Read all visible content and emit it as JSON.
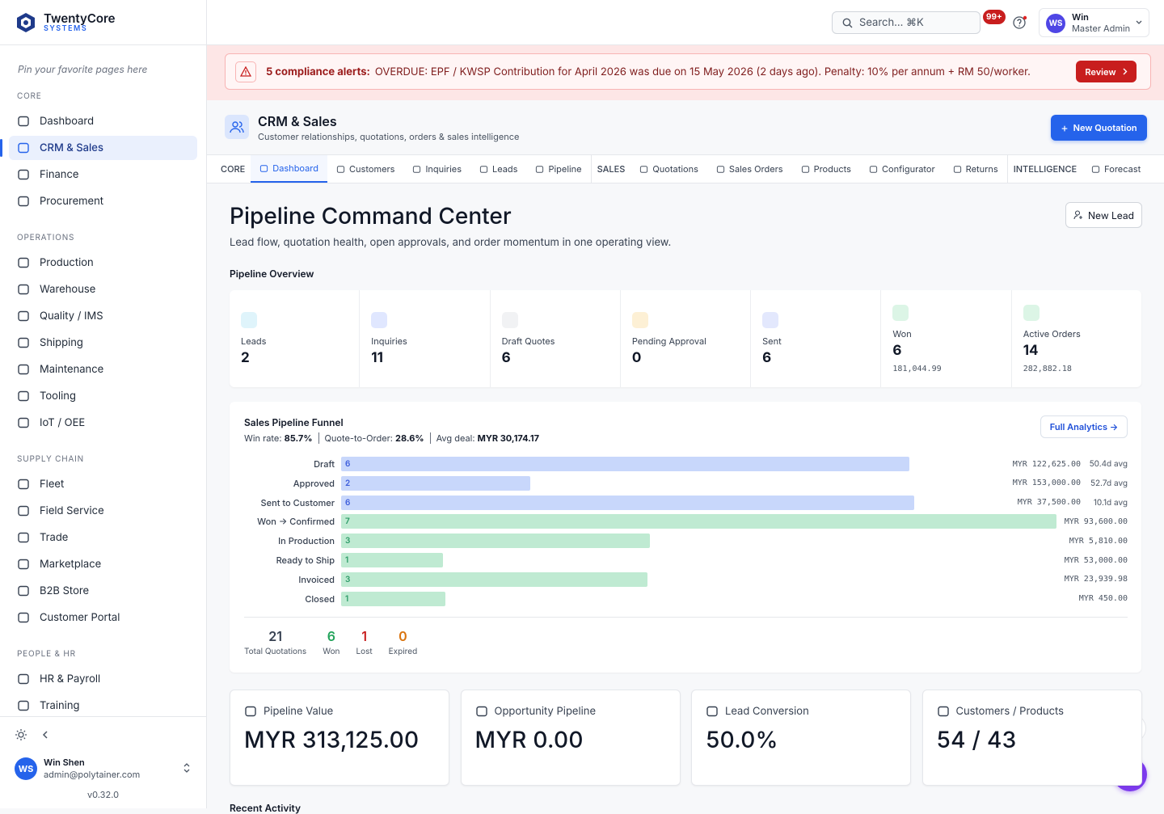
{
  "brand": {
    "name": "TwentyCore",
    "tagline": "SYSTEMS"
  },
  "sidebar": {
    "pin_hint": "Pin your favorite pages here",
    "active": "CRM & Sales",
    "sections": [
      {
        "title": "CORE",
        "items": [
          "Dashboard",
          "CRM & Sales",
          "Finance",
          "Procurement"
        ]
      },
      {
        "title": "OPERATIONS",
        "items": [
          "Production",
          "Warehouse",
          "Quality / IMS",
          "Shipping",
          "Maintenance",
          "Tooling",
          "IoT / OEE"
        ]
      },
      {
        "title": "SUPPLY CHAIN",
        "items": [
          "Fleet",
          "Field Service",
          "Trade",
          "Marketplace",
          "B2B Store",
          "Customer Portal"
        ]
      },
      {
        "title": "PEOPLE & HR",
        "items": [
          "HR & Payroll",
          "Training"
        ]
      }
    ],
    "user": {
      "initials": "WS",
      "name": "Win Shen",
      "email": "admin@polytainer.com"
    },
    "version": "v0.32.0"
  },
  "topbar": {
    "search": "Search... ⌘K",
    "notifications": "99+",
    "user": {
      "initials": "WS",
      "name": "Win",
      "role": "Master Admin"
    }
  },
  "alert": {
    "label": "5 compliance alerts:",
    "message": "OVERDUE: EPF / KWSP Contribution for April 2026 was due on 15 May 2026 (2 days ago). Penalty: 10% per annum + RM 50/worker.",
    "action": "Review"
  },
  "module": {
    "title": "CRM & Sales",
    "subtitle": "Customer relationships, quotations, orders & sales intelligence",
    "action": "New Quotation"
  },
  "tabs": {
    "active": "Dashboard",
    "groups": [
      {
        "title": "CORE",
        "items": [
          "Dashboard",
          "Customers",
          "Inquiries",
          "Leads",
          "Pipeline"
        ]
      },
      {
        "title": "SALES",
        "items": [
          "Quotations",
          "Sales Orders",
          "Products",
          "Configurator",
          "Returns"
        ]
      },
      {
        "title": "INTELLIGENCE",
        "items": [
          "Forecast"
        ]
      }
    ]
  },
  "page": {
    "title": "Pipeline Command Center",
    "subtitle": "Lead flow, quotation health, open approvals, and order momentum in one operating view.",
    "action": "New Lead"
  },
  "overview": {
    "title": "Pipeline Overview",
    "cards": [
      {
        "label": "Leads",
        "value": "2"
      },
      {
        "label": "Inquiries",
        "value": "11"
      },
      {
        "label": "Draft Quotes",
        "value": "6"
      },
      {
        "label": "Pending Approval",
        "value": "0"
      },
      {
        "label": "Sent",
        "value": "6"
      },
      {
        "label": "Won",
        "value": "6",
        "sub": "181,044.99"
      },
      {
        "label": "Active Orders",
        "value": "14",
        "sub": "282,882.18"
      }
    ]
  },
  "funnel": {
    "title": "Sales Pipeline Funnel",
    "stats": [
      {
        "label": "Win rate:",
        "value": "85.7%"
      },
      {
        "label": "Quote-to-Order:",
        "value": "28.6%"
      },
      {
        "label": "Avg deal:",
        "value": "MYR 30,174.17"
      }
    ],
    "action": "Full Analytics →",
    "stages": [
      {
        "name": "Draft",
        "count": 6,
        "amount": "MYR 122,625.00",
        "avg": "50.4d avg",
        "color": "#c8d7fb"
      },
      {
        "name": "Approved",
        "count": 2,
        "amount": "MYR 153,000.00",
        "avg": "52.7d avg",
        "color": "#c8d7fb"
      },
      {
        "name": "Sent to Customer",
        "count": 6,
        "amount": "MYR 37,500.00",
        "avg": "10.1d avg",
        "color": "#c8d7fb"
      },
      {
        "name": "Won → Confirmed",
        "count": 7,
        "amount": "MYR 93,600.00",
        "color": "#bfead2"
      },
      {
        "name": "In Production",
        "count": 3,
        "amount": "MYR 5,810.00",
        "color": "#bfead2"
      },
      {
        "name": "Ready to Ship",
        "count": 1,
        "amount": "MYR 53,000.00",
        "color": "#bfead2"
      },
      {
        "name": "Invoiced",
        "count": 3,
        "amount": "MYR 23,939.98",
        "color": "#bfead2"
      },
      {
        "name": "Closed",
        "count": 1,
        "amount": "MYR 450.00",
        "color": "#bfead2"
      }
    ],
    "totals": [
      {
        "value": "21",
        "label": "Total Quotations"
      },
      {
        "value": "6",
        "label": "Won"
      },
      {
        "value": "1",
        "label": "Lost"
      },
      {
        "value": "0",
        "label": "Expired"
      }
    ]
  },
  "kpis": [
    {
      "label": "Pipeline Value",
      "value": "MYR 313,125.00"
    },
    {
      "label": "Opportunity Pipeline",
      "value": "MYR 0.00"
    },
    {
      "label": "Lead Conversion",
      "value": "50.0%"
    },
    {
      "label": "Customers / Products",
      "value": "54 / 43"
    }
  ],
  "next_section": "Recent Activity"
}
